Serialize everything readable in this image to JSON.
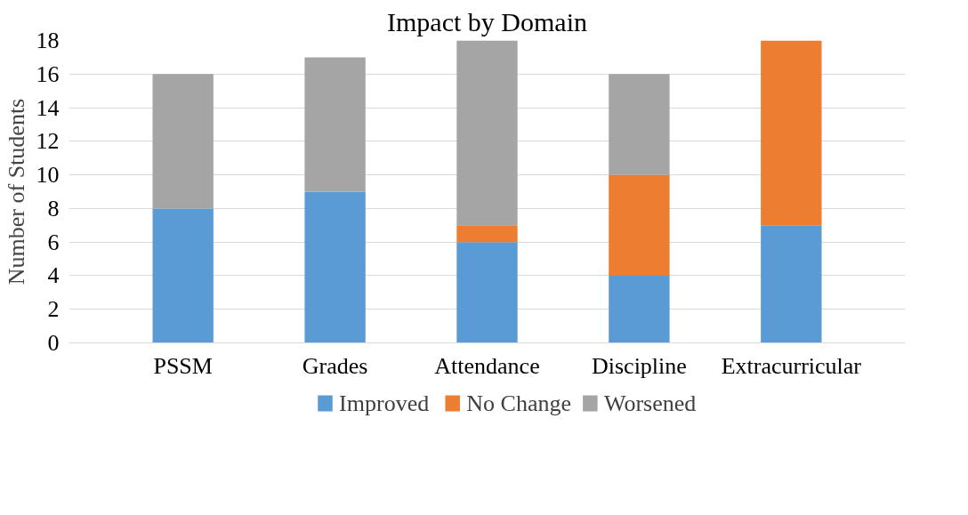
{
  "chart_data": {
    "type": "bar",
    "title": "Impact by Domain",
    "ylabel": "Number of Students",
    "categories": [
      "PSSM",
      "Grades",
      "Attendance",
      "Discipline",
      "Extracurricular"
    ],
    "stacked": true,
    "series": [
      {
        "name": "Improved",
        "color": "#5b9bd5",
        "values": [
          8,
          9,
          6,
          4,
          7
        ]
      },
      {
        "name": "No Change",
        "color": "#ed7d31",
        "values": [
          0,
          0,
          1,
          6,
          11
        ]
      },
      {
        "name": "Worsened",
        "color": "#a5a5a5",
        "values": [
          8,
          8,
          11,
          6,
          0
        ]
      }
    ],
    "ylim": [
      0,
      18
    ],
    "yticks": [
      0,
      2,
      4,
      6,
      8,
      10,
      12,
      14,
      16,
      18
    ],
    "grid": "y",
    "legend": "bottom"
  }
}
